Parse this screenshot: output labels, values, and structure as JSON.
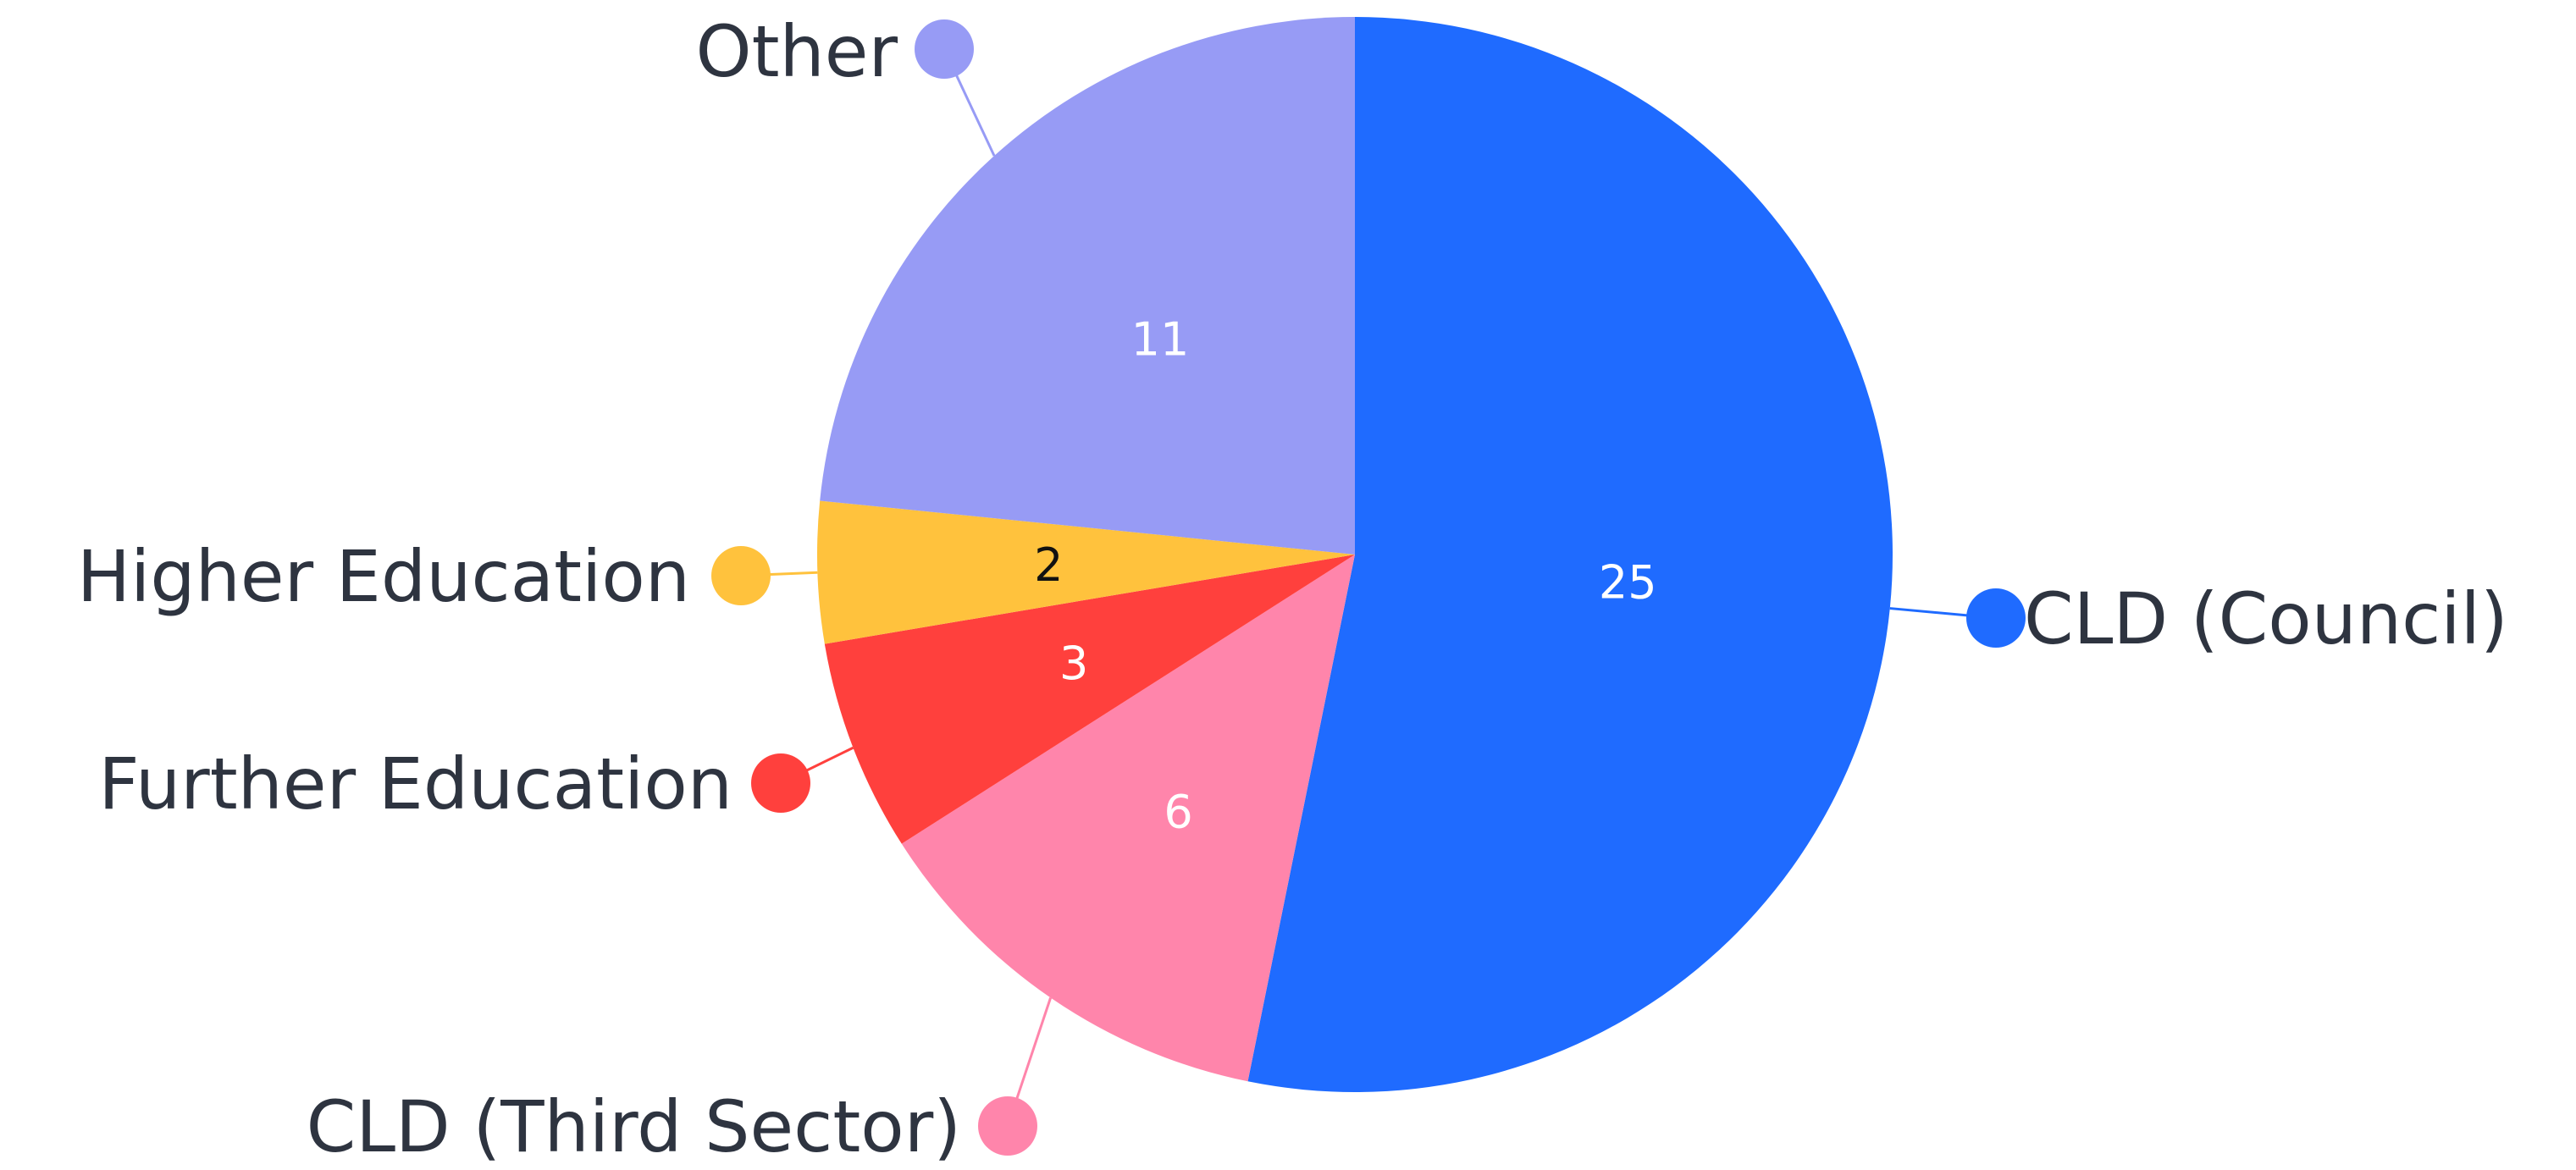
{
  "chart_data": {
    "type": "pie",
    "title": "",
    "slices": [
      {
        "label": "CLD (Council)",
        "value": 25,
        "color": "#1f6bff",
        "value_text_color": "#ffffff"
      },
      {
        "label": "CLD (Third Sector)",
        "value": 6,
        "color": "#ff85ab",
        "value_text_color": "#ffffff"
      },
      {
        "label": "Further Education",
        "value": 3,
        "color": "#ff403d",
        "value_text_color": "#ffffff"
      },
      {
        "label": "Higher Education",
        "value": 2,
        "color": "#ffc23d",
        "value_text_color": "#111111"
      },
      {
        "label": "Other",
        "value": 11,
        "color": "#979bf5",
        "value_text_color": "#ffffff"
      }
    ],
    "start_angle": "12 o'clock",
    "direction": "clockwise",
    "legend": "none (callout labels with leader lines)"
  }
}
